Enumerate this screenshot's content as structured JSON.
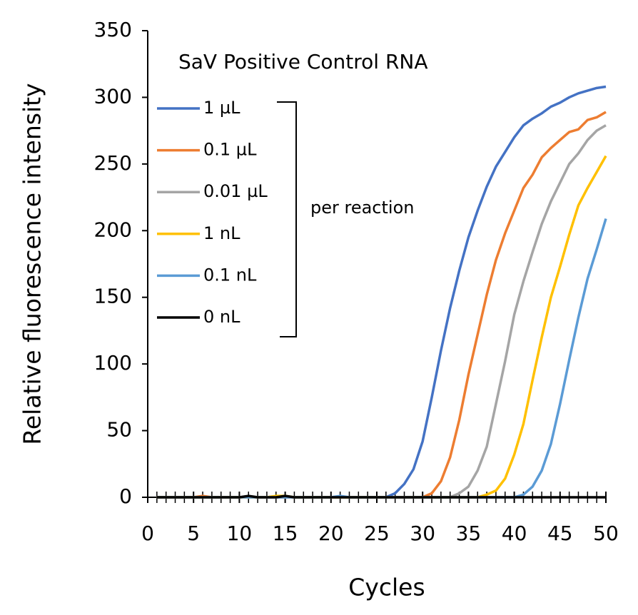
{
  "chart_data": {
    "type": "line",
    "title": "SaV Positive Control RNA",
    "annotation": "per reaction",
    "x_label": "Cycles",
    "y_label": "Relative fluorescence intensity",
    "xlim": [
      0,
      50
    ],
    "ylim": [
      0,
      350
    ],
    "xticks": [
      0,
      5,
      10,
      15,
      20,
      25,
      30,
      35,
      40,
      45,
      50
    ],
    "xminorticks": [
      1,
      2,
      3,
      4,
      6,
      7,
      8,
      9,
      11,
      12,
      13,
      14,
      16,
      17,
      18,
      19,
      21,
      22,
      23,
      24,
      26,
      27,
      28,
      29,
      31,
      32,
      33,
      34,
      36,
      37,
      38,
      39,
      41,
      42,
      43,
      44,
      46,
      47,
      48,
      49
    ],
    "yticks": [
      0,
      50,
      100,
      150,
      200,
      250,
      300,
      350
    ],
    "legend": "upper-left",
    "x": [
      1,
      2,
      3,
      4,
      5,
      6,
      7,
      8,
      9,
      10,
      11,
      12,
      13,
      14,
      15,
      16,
      17,
      18,
      19,
      20,
      21,
      22,
      23,
      24,
      25,
      26,
      27,
      28,
      29,
      30,
      31,
      32,
      33,
      34,
      35,
      36,
      37,
      38,
      39,
      40,
      41,
      42,
      43,
      44,
      45,
      46,
      47,
      48,
      49,
      50
    ],
    "series": [
      {
        "name": "1 µL",
        "color": "#4472c4",
        "values": [
          0,
          0,
          0,
          0,
          0,
          0,
          0,
          0,
          0,
          0,
          0,
          0,
          0,
          0,
          0,
          0,
          0,
          0,
          0,
          0,
          0,
          0,
          0,
          0,
          0,
          0,
          3,
          10,
          21,
          42,
          75,
          110,
          142,
          170,
          195,
          215,
          233,
          248,
          259,
          270,
          279,
          284,
          288,
          293,
          296,
          300,
          303,
          305,
          307,
          308
        ]
      },
      {
        "name": "0.1 µL",
        "color": "#ed7d31",
        "values": [
          0,
          0,
          0,
          0,
          0,
          1,
          0,
          0,
          0,
          0,
          0,
          0,
          0,
          0,
          0,
          0,
          0,
          0,
          0,
          0,
          0,
          0,
          0,
          0,
          0,
          0,
          0,
          0,
          0,
          0,
          3,
          12,
          30,
          58,
          92,
          122,
          152,
          178,
          198,
          215,
          232,
          242,
          255,
          262,
          268,
          274,
          276,
          283,
          285,
          289
        ]
      },
      {
        "name": "0.01 µL",
        "color": "#a5a5a5",
        "values": [
          0,
          0,
          0,
          0,
          0,
          0,
          0,
          0,
          0,
          0,
          0,
          0,
          0,
          0,
          0,
          0,
          0,
          0,
          0,
          0,
          0,
          0,
          0,
          0,
          0,
          0,
          0,
          0,
          0,
          0,
          0,
          0,
          0,
          3,
          8,
          20,
          38,
          70,
          102,
          137,
          162,
          184,
          205,
          222,
          236,
          250,
          258,
          268,
          275,
          279
        ]
      },
      {
        "name": "1 nL",
        "color": "#ffc000",
        "values": [
          0,
          0,
          0,
          0,
          0,
          0,
          0,
          0,
          0,
          0,
          0,
          0,
          0,
          1,
          1,
          0,
          0,
          0,
          0,
          0,
          0,
          0,
          0,
          0,
          0,
          0,
          0,
          0,
          0,
          0,
          0,
          0,
          0,
          0,
          0,
          0,
          2,
          5,
          14,
          32,
          55,
          88,
          120,
          150,
          173,
          197,
          219,
          232,
          244,
          256
        ]
      },
      {
        "name": "0.1 nL",
        "color": "#5b9bd5",
        "values": [
          0,
          0,
          0,
          0,
          0,
          0,
          0,
          0,
          0,
          0,
          0,
          0,
          0,
          0,
          0,
          0,
          0,
          0,
          0,
          0,
          1,
          0,
          0,
          0,
          0,
          0,
          0,
          0,
          0,
          0,
          0,
          0,
          0,
          0,
          0,
          0,
          0,
          0,
          0,
          0,
          2,
          8,
          20,
          40,
          70,
          103,
          135,
          164,
          186,
          209
        ]
      },
      {
        "name": "0 nL",
        "color": "#000000",
        "values": [
          0,
          0,
          0,
          0,
          0,
          0,
          0,
          0,
          0,
          0,
          1,
          0,
          0,
          0,
          1,
          0,
          0,
          0,
          0,
          0,
          0,
          0,
          0,
          0,
          0,
          0,
          0,
          0,
          0,
          0,
          0,
          0,
          0,
          0,
          0,
          0,
          0,
          0,
          0,
          0,
          0,
          0,
          0,
          0,
          0,
          0,
          0,
          0,
          0,
          0
        ]
      }
    ]
  }
}
